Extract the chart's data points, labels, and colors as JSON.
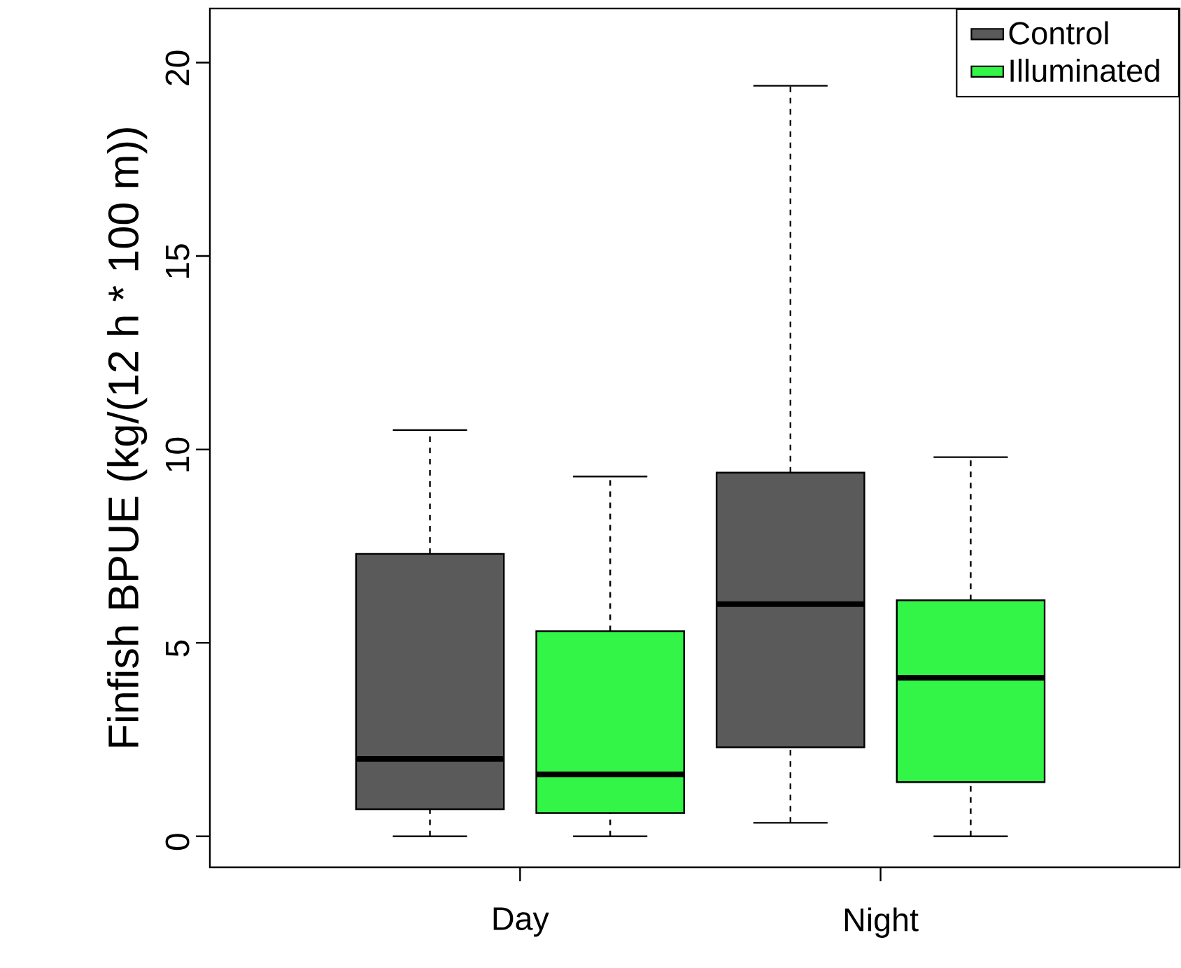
{
  "chart_data": {
    "type": "box",
    "ylabel": "Finfish BPUE (kg/(12 h * 100 m))",
    "categories": [
      "Day",
      "Night"
    ],
    "ylim": [
      -0.8,
      21.4
    ],
    "yticks": [
      0,
      5,
      10,
      15,
      20
    ],
    "legend": "top right",
    "series": [
      {
        "name": "Control",
        "color": "#5a5a5a",
        "boxes": [
          {
            "low": 0,
            "q1": 0.7,
            "median": 2.0,
            "q3": 7.3,
            "high": 10.5
          },
          {
            "low": 0.35,
            "q1": 2.3,
            "median": 6.0,
            "q3": 9.4,
            "high": 19.4
          }
        ]
      },
      {
        "name": "Illuminated",
        "color": "#33f547",
        "boxes": [
          {
            "low": 0,
            "q1": 0.6,
            "median": 1.6,
            "q3": 5.3,
            "high": 9.3
          },
          {
            "low": 0,
            "q1": 1.4,
            "median": 4.1,
            "q3": 6.1,
            "high": 9.8
          }
        ]
      }
    ]
  }
}
